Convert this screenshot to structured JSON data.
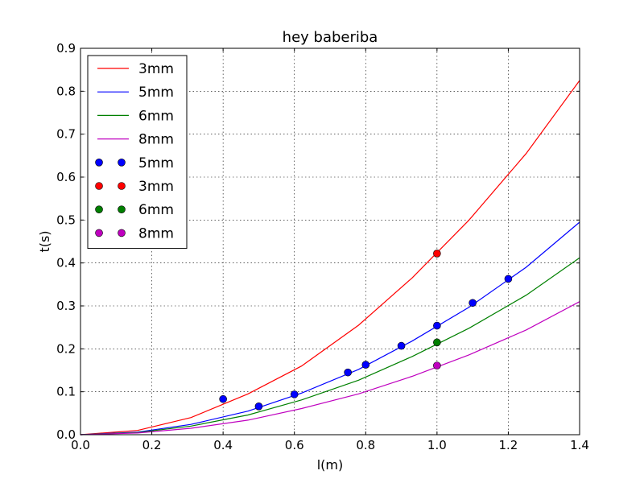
{
  "chart_data": {
    "type": "line",
    "title": "hey baberiba",
    "xlabel": "l(m)",
    "ylabel": "t(s)",
    "xlim": [
      0.0,
      1.4
    ],
    "ylim": [
      0.0,
      0.9
    ],
    "xticks": [
      "0.0",
      "0.2",
      "0.4",
      "0.6",
      "0.8",
      "1.0",
      "1.2",
      "1.4"
    ],
    "yticks": [
      "0.0",
      "0.1",
      "0.2",
      "0.3",
      "0.4",
      "0.5",
      "0.6",
      "0.7",
      "0.8",
      "0.9"
    ],
    "grid": true,
    "legend_position": "top-left",
    "series": [
      {
        "name": "3mm",
        "kind": "line",
        "color": "#ff0000",
        "x": [
          0.0,
          0.16,
          0.31,
          0.47,
          0.62,
          0.78,
          0.93,
          1.09,
          1.25,
          1.4
        ],
        "y": [
          0.0,
          0.01,
          0.04,
          0.095,
          0.16,
          0.255,
          0.365,
          0.5,
          0.655,
          0.825
        ]
      },
      {
        "name": "5mm",
        "kind": "line",
        "color": "#0000ff",
        "x": [
          0.0,
          0.16,
          0.31,
          0.47,
          0.62,
          0.78,
          0.93,
          1.09,
          1.25,
          1.4
        ],
        "y": [
          0.0,
          0.006,
          0.024,
          0.055,
          0.097,
          0.152,
          0.218,
          0.297,
          0.39,
          0.495
        ]
      },
      {
        "name": "6mm",
        "kind": "line",
        "color": "#008000",
        "x": [
          0.0,
          0.16,
          0.31,
          0.47,
          0.62,
          0.78,
          0.93,
          1.09,
          1.25,
          1.4
        ],
        "y": [
          0.0,
          0.005,
          0.02,
          0.046,
          0.081,
          0.127,
          0.182,
          0.248,
          0.325,
          0.412
        ]
      },
      {
        "name": "8mm",
        "kind": "line",
        "color": "#bf00bf",
        "x": [
          0.0,
          0.16,
          0.31,
          0.47,
          0.62,
          0.78,
          0.93,
          1.09,
          1.25,
          1.4
        ],
        "y": [
          0.0,
          0.004,
          0.015,
          0.034,
          0.061,
          0.095,
          0.136,
          0.186,
          0.244,
          0.31
        ]
      },
      {
        "name": "5mm",
        "kind": "marker",
        "color": "#0000ff",
        "x": [
          0.4,
          0.5,
          0.6,
          0.75,
          0.8,
          0.9,
          1.0,
          1.1,
          1.2
        ],
        "y": [
          0.083,
          0.066,
          0.094,
          0.145,
          0.163,
          0.207,
          0.254,
          0.307,
          0.363
        ]
      },
      {
        "name": "3mm",
        "kind": "marker",
        "color": "#ff0000",
        "x": [
          1.0
        ],
        "y": [
          0.422
        ]
      },
      {
        "name": "6mm",
        "kind": "marker",
        "color": "#008000",
        "x": [
          1.0
        ],
        "y": [
          0.215
        ]
      },
      {
        "name": "8mm",
        "kind": "marker",
        "color": "#bf00bf",
        "x": [
          1.0
        ],
        "y": [
          0.161
        ]
      }
    ]
  }
}
